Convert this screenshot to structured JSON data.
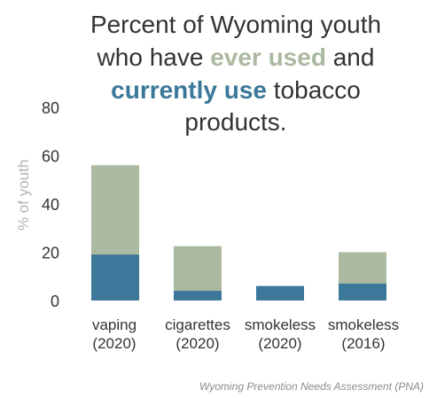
{
  "chart_data": {
    "type": "bar",
    "stacked": true,
    "title_lines": [
      [
        {
          "text": "Percent of Wyoming youth",
          "style": "plain"
        }
      ],
      [
        {
          "text": "who have ",
          "style": "plain"
        },
        {
          "text": "ever used",
          "style": "ever"
        },
        {
          "text": " and",
          "style": "plain"
        }
      ],
      [
        {
          "text": "currently use",
          "style": "current"
        },
        {
          "text": " tobacco",
          "style": "plain"
        }
      ],
      [
        {
          "text": "products.",
          "style": "plain"
        }
      ]
    ],
    "categories": [
      [
        "vaping",
        "(2020)"
      ],
      [
        "cigarettes",
        "(2020)"
      ],
      [
        "smokeless",
        "(2020)"
      ],
      [
        "smokeless",
        "(2016)"
      ]
    ],
    "series": [
      {
        "key": "current",
        "values": [
          19,
          4,
          6,
          7
        ]
      },
      {
        "key": "ever",
        "values": [
          56,
          22.5,
          6,
          20
        ]
      }
    ],
    "ylabel": "% of youth",
    "ylim": [
      0,
      80
    ],
    "yticks": [
      0,
      20,
      40,
      60,
      80
    ],
    "grid": false,
    "source": "Wyoming Prevention Needs Assessment (PNA)",
    "colors": {
      "current": "#3b7899",
      "ever": "#abb9a1",
      "text": "#333333",
      "axis_label": "#b3b3b3",
      "source": "#8c8c8c",
      "axis": "#cccccc"
    }
  }
}
